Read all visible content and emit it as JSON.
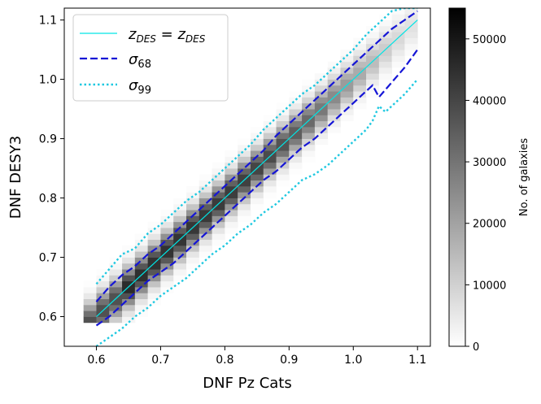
{
  "chart_data": {
    "type": "heatmap",
    "title": "",
    "xlabel": "DNF Pz Cats",
    "ylabel": "DNF DESY3",
    "xlim": [
      0.55,
      1.12
    ],
    "ylim": [
      0.55,
      1.12
    ],
    "xticks": [
      "0.6",
      "0.7",
      "0.8",
      "0.9",
      "1.0",
      "1.1"
    ],
    "yticks": [
      "0.6",
      "0.7",
      "0.8",
      "0.9",
      "1.0",
      "1.1"
    ],
    "colorbar": {
      "label": "No. of galaxies",
      "range": [
        0,
        55000
      ],
      "ticks": [
        "0",
        "10000",
        "20000",
        "30000",
        "40000",
        "50000"
      ],
      "colormap": "gray_r"
    },
    "legend": {
      "position": "top-left",
      "entries": [
        {
          "label_main": "z",
          "label_sub": "DES",
          "label_eq": " = ",
          "label_main2": "z",
          "label_sub2": "DES",
          "style": "solid",
          "color": "#00e5e5"
        },
        {
          "label_main": "σ",
          "label_sub": "68",
          "style": "dashed",
          "color": "#1515d6"
        },
        {
          "label_main": "σ",
          "label_sub": "99",
          "style": "dotted",
          "color": "#1ec8e0"
        }
      ]
    },
    "series": [
      {
        "name": "identity",
        "x": [
          0.6,
          1.1
        ],
        "y": [
          0.6,
          1.1
        ]
      },
      {
        "name": "sigma68_upper",
        "x": [
          0.6,
          0.62,
          0.64,
          0.66,
          0.68,
          0.7,
          0.72,
          0.74,
          0.76,
          0.78,
          0.8,
          0.82,
          0.84,
          0.86,
          0.88,
          0.9,
          0.92,
          0.94,
          0.96,
          0.98,
          1.0,
          1.02,
          1.04,
          1.06,
          1.08,
          1.1
        ],
        "y": [
          0.625,
          0.65,
          0.67,
          0.685,
          0.705,
          0.72,
          0.74,
          0.76,
          0.78,
          0.8,
          0.82,
          0.84,
          0.86,
          0.88,
          0.905,
          0.925,
          0.945,
          0.965,
          0.985,
          1.005,
          1.025,
          1.045,
          1.065,
          1.085,
          1.1,
          1.115
        ]
      },
      {
        "name": "sigma68_lower",
        "x": [
          0.6,
          0.62,
          0.64,
          0.66,
          0.68,
          0.7,
          0.72,
          0.74,
          0.76,
          0.78,
          0.8,
          0.82,
          0.84,
          0.86,
          0.88,
          0.9,
          0.92,
          0.94,
          0.96,
          0.98,
          1.0,
          1.02,
          1.03,
          1.04,
          1.06,
          1.08,
          1.1
        ],
        "y": [
          0.585,
          0.6,
          0.62,
          0.64,
          0.66,
          0.675,
          0.69,
          0.71,
          0.73,
          0.75,
          0.77,
          0.79,
          0.81,
          0.83,
          0.845,
          0.865,
          0.885,
          0.9,
          0.92,
          0.94,
          0.96,
          0.98,
          0.99,
          0.97,
          0.995,
          1.02,
          1.05
        ]
      },
      {
        "name": "sigma99_upper",
        "x": [
          0.6,
          0.62,
          0.64,
          0.66,
          0.68,
          0.7,
          0.72,
          0.74,
          0.76,
          0.78,
          0.8,
          0.82,
          0.84,
          0.86,
          0.88,
          0.9,
          0.92,
          0.94,
          0.96,
          0.98,
          1.0,
          1.02,
          1.04,
          1.06,
          1.08,
          1.1
        ],
        "y": [
          0.655,
          0.68,
          0.705,
          0.715,
          0.74,
          0.755,
          0.775,
          0.795,
          0.81,
          0.83,
          0.85,
          0.87,
          0.89,
          0.915,
          0.935,
          0.955,
          0.975,
          0.99,
          1.01,
          1.03,
          1.05,
          1.075,
          1.095,
          1.115,
          1.12,
          1.12
        ]
      },
      {
        "name": "sigma99_lower",
        "x": [
          0.6,
          0.62,
          0.64,
          0.66,
          0.68,
          0.7,
          0.72,
          0.74,
          0.76,
          0.78,
          0.8,
          0.82,
          0.84,
          0.86,
          0.88,
          0.9,
          0.92,
          0.94,
          0.96,
          0.98,
          1.0,
          1.02,
          1.03,
          1.04,
          1.05,
          1.06,
          1.08,
          1.1
        ],
        "y": [
          0.55,
          0.565,
          0.58,
          0.6,
          0.615,
          0.635,
          0.65,
          0.665,
          0.685,
          0.705,
          0.72,
          0.74,
          0.755,
          0.775,
          0.79,
          0.81,
          0.83,
          0.84,
          0.855,
          0.875,
          0.895,
          0.915,
          0.93,
          0.955,
          0.945,
          0.955,
          0.975,
          1.0
        ]
      }
    ],
    "density_peaks": [
      {
        "x": 0.63,
        "count": 52000
      },
      {
        "x": 0.66,
        "count": 50000
      },
      {
        "x": 0.7,
        "count": 49000
      },
      {
        "x": 0.74,
        "count": 48000
      },
      {
        "x": 0.78,
        "count": 47000
      },
      {
        "x": 0.82,
        "count": 46000
      },
      {
        "x": 0.86,
        "count": 44000
      },
      {
        "x": 0.9,
        "count": 40000
      },
      {
        "x": 0.94,
        "count": 34000
      },
      {
        "x": 0.98,
        "count": 26000
      },
      {
        "x": 1.02,
        "count": 18000
      },
      {
        "x": 1.06,
        "count": 10000
      },
      {
        "x": 1.1,
        "count": 6000
      }
    ]
  }
}
